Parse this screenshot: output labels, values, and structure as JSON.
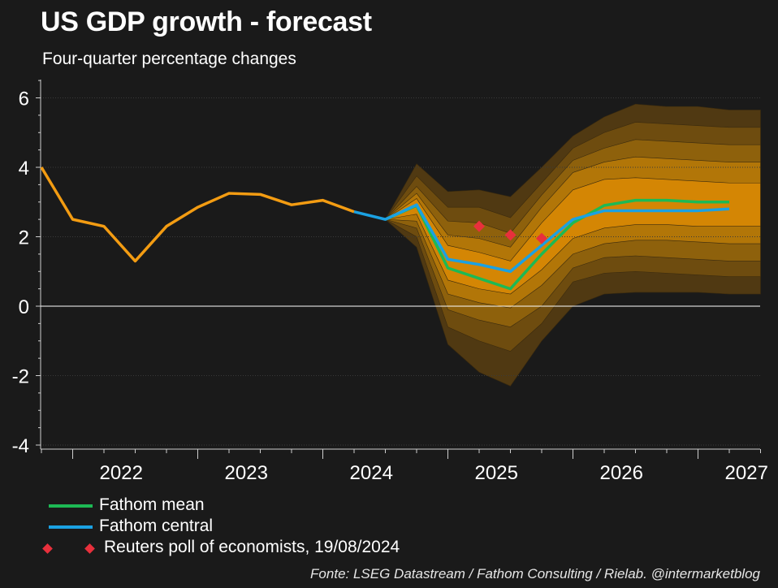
{
  "header": {
    "title": "US GDP growth - forecast",
    "subtitle": "Four-quarter percentage changes"
  },
  "legend": {
    "mean_label": "Fathom mean",
    "central_label": "Fathom central",
    "reuters_label": "Reuters poll of economists, 19/08/2024"
  },
  "source": "Fonte: LSEG Datastream / Fathom Consulting / Rielab. @intermarketblog",
  "colors": {
    "background": "#1a1a1a",
    "history": "#f39c12",
    "fathom_mean": "#1db954",
    "fathom_central": "#1ba1e2",
    "reuters": "#e8303c",
    "fan_inner": "#ff9a00",
    "fan_outer": "#6b4a12"
  },
  "chart_data": {
    "type": "line",
    "title": "US GDP growth - forecast",
    "subtitle": "Four-quarter percentage changes",
    "x_axis_ticks": [
      "2022",
      "2023",
      "2024",
      "2025",
      "2026",
      "2027"
    ],
    "x_range": [
      "2021Q4",
      "2027Q4"
    ],
    "ylim": [
      -4,
      6.5
    ],
    "yticks": [
      -4,
      -2,
      0,
      2,
      4,
      6
    ],
    "grid": true,
    "x": [
      "2021Q4",
      "2022Q1",
      "2022Q2",
      "2022Q3",
      "2022Q4",
      "2023Q1",
      "2023Q2",
      "2023Q3",
      "2023Q4",
      "2024Q1",
      "2024Q2",
      "2024Q3",
      "2024Q4",
      "2025Q1",
      "2025Q2",
      "2025Q3",
      "2025Q4",
      "2026Q1",
      "2026Q2",
      "2026Q3",
      "2026Q4",
      "2027Q1",
      "2027Q2",
      "2027Q3",
      "2027Q4"
    ],
    "series": [
      {
        "name": "",
        "role": "history",
        "values": [
          4.0,
          2.5,
          2.3,
          1.3,
          2.3,
          2.85,
          3.25,
          3.22,
          2.92,
          3.05,
          2.72,
          null,
          null,
          null,
          null,
          null,
          null,
          null,
          null,
          null,
          null,
          null,
          null,
          null,
          null
        ]
      },
      {
        "name": "Fathom central",
        "values": [
          null,
          null,
          null,
          null,
          null,
          null,
          null,
          null,
          null,
          null,
          2.72,
          2.5,
          2.92,
          1.35,
          1.2,
          1.0,
          1.75,
          2.5,
          2.75,
          2.75,
          2.75,
          2.75,
          2.8,
          null,
          null
        ]
      },
      {
        "name": "Fathom mean",
        "values": [
          null,
          null,
          null,
          null,
          null,
          null,
          null,
          null,
          null,
          null,
          null,
          2.5,
          2.9,
          1.1,
          0.8,
          0.5,
          1.5,
          2.4,
          2.9,
          3.05,
          3.05,
          3.0,
          3.0,
          null,
          null
        ]
      },
      {
        "name": "Reuters poll of economists, 19/08/2024",
        "type": "scatter",
        "points": [
          {
            "x": "2025Q2",
            "y": 2.3
          },
          {
            "x": "2025Q3",
            "y": 2.05
          },
          {
            "x": "2025Q4",
            "y": 1.95
          }
        ]
      }
    ],
    "fan": {
      "x": [
        "2024Q3",
        "2024Q4",
        "2025Q1",
        "2025Q2",
        "2025Q3",
        "2025Q4",
        "2026Q1",
        "2026Q2",
        "2026Q3",
        "2026Q4",
        "2027Q1",
        "2027Q2",
        "2027Q3"
      ],
      "bands": [
        {
          "upper": [
            2.5,
            4.1,
            3.3,
            3.35,
            3.15,
            4.0,
            4.9,
            5.45,
            5.82,
            5.75,
            5.75,
            5.65,
            5.65
          ],
          "lower": [
            2.5,
            1.7,
            -1.1,
            -1.9,
            -2.3,
            -1.0,
            0.0,
            0.35,
            0.4,
            0.4,
            0.4,
            0.35,
            0.35
          ]
        },
        {
          "upper": [
            2.5,
            3.75,
            2.85,
            2.85,
            2.55,
            3.55,
            4.55,
            5.0,
            5.3,
            5.25,
            5.2,
            5.15,
            5.15
          ],
          "lower": [
            2.5,
            2.0,
            -0.6,
            -1.0,
            -1.3,
            -0.5,
            0.7,
            0.95,
            1.0,
            0.95,
            0.9,
            0.85,
            0.85
          ]
        },
        {
          "upper": [
            2.5,
            3.45,
            2.45,
            2.4,
            2.1,
            3.2,
            4.2,
            4.55,
            4.8,
            4.75,
            4.7,
            4.65,
            4.65
          ],
          "lower": [
            2.5,
            2.25,
            -0.1,
            -0.4,
            -0.6,
            0.0,
            1.1,
            1.4,
            1.45,
            1.4,
            1.35,
            1.3,
            1.3
          ]
        },
        {
          "upper": [
            2.5,
            3.25,
            2.05,
            1.95,
            1.7,
            2.85,
            3.85,
            4.15,
            4.3,
            4.25,
            4.2,
            4.15,
            4.15
          ],
          "lower": [
            2.5,
            2.45,
            0.35,
            0.1,
            -0.05,
            0.6,
            1.5,
            1.8,
            1.9,
            1.9,
            1.85,
            1.8,
            1.8
          ]
        },
        {
          "upper": [
            2.5,
            3.1,
            1.75,
            1.55,
            1.3,
            2.4,
            3.35,
            3.65,
            3.7,
            3.65,
            3.6,
            3.55,
            3.55
          ],
          "lower": [
            2.5,
            2.65,
            0.75,
            0.5,
            0.35,
            1.05,
            1.95,
            2.25,
            2.35,
            2.35,
            2.3,
            2.3,
            2.3
          ]
        }
      ]
    }
  }
}
